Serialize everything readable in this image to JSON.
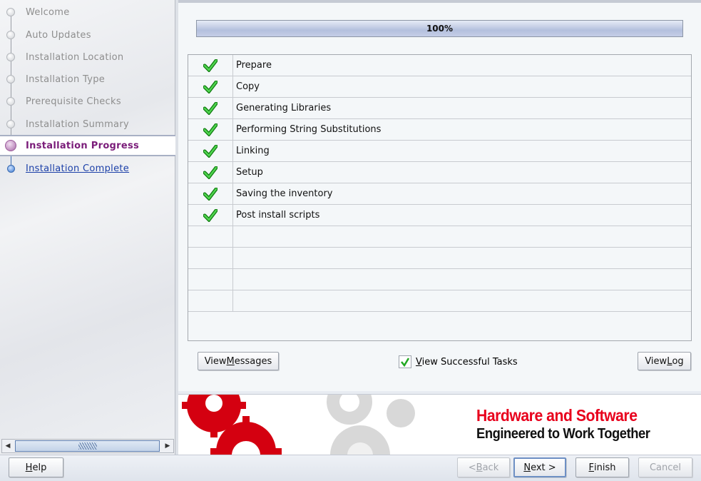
{
  "sidebar": {
    "steps": [
      {
        "label": "Welcome",
        "state": "done"
      },
      {
        "label": "Auto Updates",
        "state": "done"
      },
      {
        "label": "Installation Location",
        "state": "done"
      },
      {
        "label": "Installation Type",
        "state": "done"
      },
      {
        "label": "Prerequisite Checks",
        "state": "done"
      },
      {
        "label": "Installation Summary",
        "state": "done"
      },
      {
        "label": "Installation Progress",
        "state": "current"
      },
      {
        "label": "Installation Complete",
        "state": "link"
      }
    ]
  },
  "progress": {
    "value": 100,
    "label": "100%"
  },
  "tasks": [
    {
      "name": "Prepare",
      "status": "success"
    },
    {
      "name": "Copy",
      "status": "success"
    },
    {
      "name": "Generating Libraries",
      "status": "success"
    },
    {
      "name": "Performing String Substitutions",
      "status": "success"
    },
    {
      "name": "Linking",
      "status": "success"
    },
    {
      "name": "Setup",
      "status": "success"
    },
    {
      "name": "Saving the inventory",
      "status": "success"
    },
    {
      "name": "Post install scripts",
      "status": "success"
    }
  ],
  "actions": {
    "view_messages": {
      "pre": "View ",
      "key": "M",
      "post": "essages"
    },
    "view_successful": {
      "pre": "",
      "key": "V",
      "post": "iew Successful Tasks",
      "checked": true
    },
    "view_log": {
      "pre": "View ",
      "key": "L",
      "post": "og"
    }
  },
  "banner": {
    "line1": "Hardware and Software",
    "line2": "Engineered to Work Together"
  },
  "footer": {
    "help": {
      "pre": "",
      "key": "H",
      "post": "elp"
    },
    "back": {
      "pre": "< ",
      "key": "B",
      "post": "ack",
      "enabled": false
    },
    "next": {
      "pre": "",
      "key": "N",
      "post": "ext >"
    },
    "finish": {
      "pre": "",
      "key": "F",
      "post": "inish"
    },
    "cancel": {
      "label": "Cancel",
      "enabled": false
    }
  },
  "colors": {
    "accent": "#7a1c79",
    "link": "#1b3fa8",
    "check": "#22a822",
    "brand_red": "#e8001c"
  }
}
